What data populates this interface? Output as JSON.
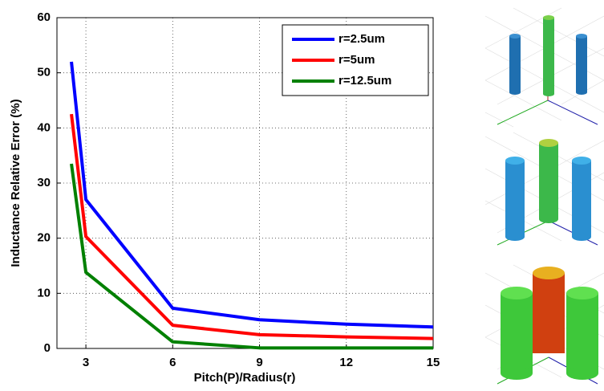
{
  "chart_data": {
    "type": "line",
    "xlabel": "Pitch(P)/Radius(r)",
    "ylabel": "Inductance Relative Error (%)",
    "x": [
      2.5,
      3,
      6,
      9,
      12,
      15
    ],
    "series": [
      {
        "name": "r=2.5um",
        "color": "#0000ff",
        "values": [
          52,
          27,
          7.3,
          5.2,
          4.4,
          3.9
        ]
      },
      {
        "name": "r=5um",
        "color": "#ff0000",
        "values": [
          42.5,
          20.3,
          4.2,
          2.5,
          2.1,
          1.8
        ]
      },
      {
        "name": "r=12.5um",
        "color": "#008000",
        "values": [
          33.5,
          13.8,
          1.2,
          0.1,
          0.1,
          0.1
        ]
      }
    ],
    "xlim": [
      2,
      15
    ],
    "ylim": [
      0,
      60
    ],
    "xticks": [
      3,
      6,
      9,
      12,
      15
    ],
    "yticks": [
      0,
      10,
      20,
      30,
      40,
      50,
      60
    ],
    "grid": true,
    "legend": "upper right"
  }
}
